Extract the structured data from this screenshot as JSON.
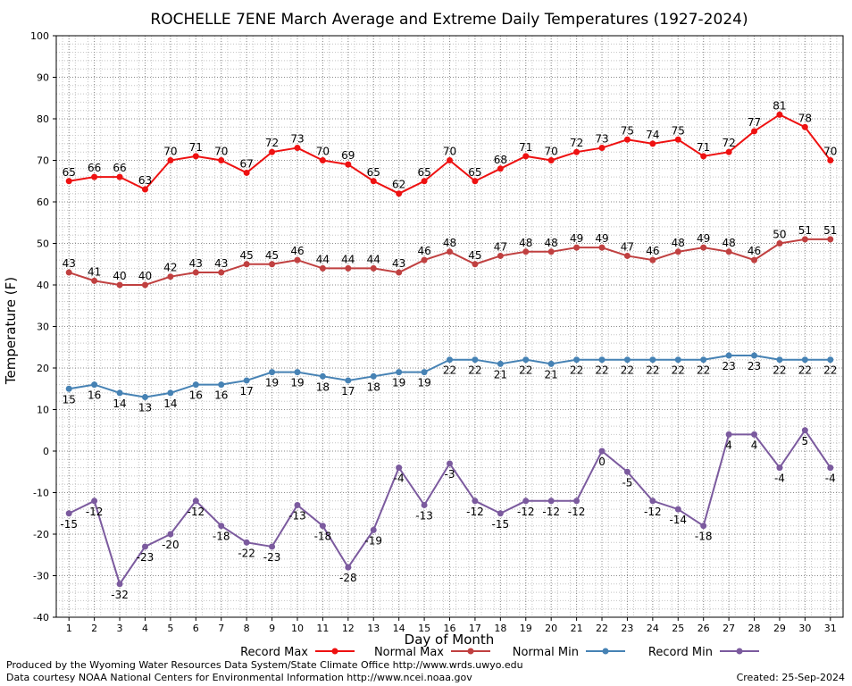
{
  "chart_data": {
    "type": "line",
    "title": "ROCHELLE 7ENE March Average and Extreme Daily Temperatures (1927-2024)",
    "xlabel": "Day of Month",
    "ylabel": "Temperature (F)",
    "ylim": [
      -40,
      100
    ],
    "yticks": [
      -40,
      -30,
      -20,
      -10,
      0,
      10,
      20,
      30,
      40,
      50,
      60,
      70,
      80,
      90,
      100
    ],
    "x": [
      1,
      2,
      3,
      4,
      5,
      6,
      7,
      8,
      9,
      10,
      11,
      12,
      13,
      14,
      15,
      16,
      17,
      18,
      19,
      20,
      21,
      22,
      23,
      24,
      25,
      26,
      27,
      28,
      29,
      30,
      31
    ],
    "grid": true,
    "legend_position": "bottom",
    "series": [
      {
        "name": "Record Max",
        "color": "#ee1111",
        "values": [
          65,
          66,
          66,
          63,
          70,
          71,
          70,
          67,
          72,
          73,
          70,
          69,
          65,
          62,
          65,
          70,
          65,
          68,
          71,
          70,
          72,
          73,
          75,
          74,
          75,
          71,
          72,
          77,
          81,
          78,
          70
        ]
      },
      {
        "name": "Normal Max",
        "color": "#c04040",
        "values": [
          43,
          41,
          40,
          40,
          42,
          43,
          43,
          45,
          45,
          46,
          44,
          44,
          44,
          43,
          46,
          48,
          45,
          47,
          48,
          48,
          49,
          49,
          47,
          46,
          48,
          49,
          48,
          46,
          50,
          51,
          51
        ]
      },
      {
        "name": "Normal Min",
        "color": "#4682b4",
        "values": [
          15,
          16,
          14,
          13,
          14,
          16,
          16,
          17,
          19,
          19,
          18,
          17,
          18,
          19,
          19,
          22,
          22,
          21,
          22,
          21,
          22,
          22,
          22,
          22,
          22,
          22,
          23,
          23,
          22,
          22,
          22
        ]
      },
      {
        "name": "Record Min",
        "color": "#7b5a9e",
        "values": [
          -15,
          -12,
          -32,
          -23,
          -20,
          -12,
          -18,
          -22,
          -23,
          -13,
          -18,
          -28,
          -19,
          -4,
          -13,
          -3,
          -12,
          -15,
          -12,
          -12,
          -12,
          0,
          -5,
          -12,
          -14,
          -18,
          4,
          4,
          -4,
          5,
          -4
        ]
      }
    ]
  },
  "footer": {
    "credit_line_1": "Produced by the Wyoming Water Resources Data System/State Climate Office http://www.wrds.uwyo.edu",
    "credit_line_2": "Data courtesy NOAA National Centers for Environmental Information http://www.ncei.noaa.gov",
    "created": "Created:  25-Sep-2024"
  }
}
